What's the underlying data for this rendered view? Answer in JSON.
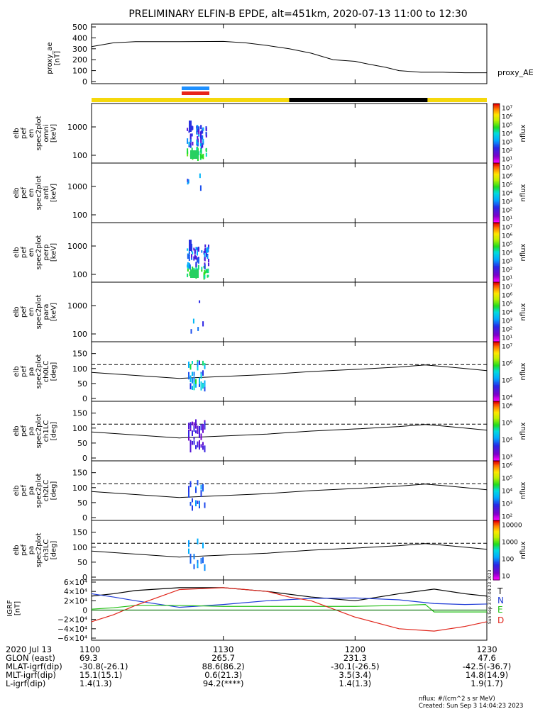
{
  "chart_data": {
    "title": "PRELIMINARY ELFIN-B EPDE, alt=451km, 2020-07-13 11:00 to 12:30",
    "type": "multi-panel spectrogram",
    "time_range": [
      "11:00",
      "12:30"
    ],
    "ae_panel": {
      "ylabel": [
        "proxy_ae",
        "[nT]"
      ],
      "ylim": [
        0,
        500
      ],
      "yticks": [
        "500",
        "400",
        "300",
        "200",
        "100",
        "0"
      ],
      "series_name": "proxy_AE",
      "x_minutes": [
        0,
        5,
        10,
        20,
        30,
        35,
        40,
        45,
        50,
        55,
        60,
        63,
        67,
        70,
        75,
        80,
        85,
        90
      ],
      "values": [
        320,
        355,
        365,
        365,
        368,
        355,
        330,
        300,
        260,
        200,
        185,
        160,
        130,
        100,
        85,
        85,
        80,
        80
      ]
    },
    "status_bar": [
      {
        "start": 0,
        "end": 50,
        "color": "#f5d80b"
      },
      {
        "start": 50,
        "end": 85,
        "color": "#000000"
      },
      {
        "start": 85,
        "end": 100,
        "color": "#f5d80b"
      }
    ],
    "markers": [
      {
        "color": "#1e90ff"
      },
      {
        "color": "#e8241a"
      }
    ],
    "energy_panels": [
      {
        "ylabel": [
          "elb",
          "pef",
          "en",
          "spec2plot",
          "omni",
          "[keV]"
        ],
        "yticks": [
          "1000",
          "100"
        ],
        "cbar_labels": [
          "10⁷",
          "10⁶",
          "10⁵",
          "10⁴",
          "10³",
          "10²",
          "10¹"
        ],
        "unit": "nflux"
      },
      {
        "ylabel": [
          "elb",
          "pef",
          "en",
          "spec2plot",
          "anti",
          "[keV]"
        ],
        "yticks": [
          "1000",
          "100"
        ],
        "cbar_labels": [
          "10⁷",
          "10⁶",
          "10⁵",
          "10⁴",
          "10³",
          "10²",
          "10¹"
        ],
        "unit": "nflux"
      },
      {
        "ylabel": [
          "elb",
          "pef",
          "en",
          "spec2plot",
          "perp",
          "[keV]"
        ],
        "yticks": [
          "1000",
          "100"
        ],
        "cbar_labels": [
          "10⁷",
          "10⁶",
          "10⁵",
          "10⁴",
          "10³",
          "10²",
          "10¹"
        ],
        "unit": "nflux"
      },
      {
        "ylabel": [
          "elb",
          "pef",
          "en",
          "spec2plot",
          "para",
          "[keV]"
        ],
        "yticks": [
          "1000",
          "100"
        ],
        "cbar_labels": [
          "10⁷",
          "10⁶",
          "10⁵",
          "10⁴",
          "10³",
          "10²",
          "10¹"
        ],
        "unit": "nflux"
      }
    ],
    "pa_panels": [
      {
        "ylabel": [
          "elb",
          "pef",
          "pa",
          "spec2plot",
          "ch0LC",
          "[deg]"
        ],
        "yticks": [
          "150",
          "100",
          "50",
          "0"
        ],
        "cbar_labels": [
          "10⁷",
          "10⁶",
          "10⁵",
          "10⁴"
        ],
        "unit": "nflux"
      },
      {
        "ylabel": [
          "elb",
          "pef",
          "pa",
          "spec2plot",
          "ch1LC",
          "[deg]"
        ],
        "yticks": [
          "150",
          "100",
          "50",
          "0"
        ],
        "cbar_labels": [
          "10⁶",
          "10⁵",
          "10⁴",
          "10³"
        ],
        "unit": "nflux"
      },
      {
        "ylabel": [
          "elb",
          "pef",
          "pa",
          "spec2plot",
          "ch2LC",
          "[deg]"
        ],
        "yticks": [
          "150",
          "100",
          "50",
          "0"
        ],
        "cbar_labels": [
          "10⁶",
          "10⁵",
          "10⁴",
          "10³",
          "10²"
        ],
        "unit": "nflux"
      },
      {
        "ylabel": [
          "elb",
          "pef",
          "pa",
          "spec2plot",
          "ch3LC",
          "[deg]"
        ],
        "yticks": [
          "150",
          "100",
          "50",
          "0"
        ],
        "cbar_labels": [
          "10000",
          "1000",
          "100",
          "10"
        ],
        "unit": "nflux"
      }
    ],
    "pa_curves": {
      "x_minutes": [
        0,
        10,
        20,
        40,
        50,
        60,
        70,
        76,
        80,
        85,
        90
      ],
      "solid_deg": [
        87,
        77,
        67,
        80,
        90,
        97,
        105,
        112,
        107,
        100,
        93
      ],
      "dashed_deg": 113
    },
    "igrf_panel": {
      "ylabel": [
        "IGRF",
        "[nT]"
      ],
      "yticks": [
        "6×10⁴",
        "4×10⁴",
        "2×10⁴",
        "0",
        "−2×10⁴",
        "−4×10⁴",
        "−6×10⁴"
      ],
      "ylim": [
        -60000,
        60000
      ],
      "series": [
        {
          "name": "T",
          "color": "#000000",
          "x": [
            0,
            5,
            10,
            20,
            30,
            40,
            50,
            60,
            70,
            78,
            85,
            90
          ],
          "y": [
            30000,
            35000,
            42000,
            48000,
            48000,
            40000,
            28000,
            20000,
            35000,
            45000,
            35000,
            30000
          ]
        },
        {
          "name": "N",
          "color": "#1f3bd6",
          "x": [
            0,
            5,
            10,
            20,
            30,
            40,
            50,
            60,
            70,
            78,
            85,
            90
          ],
          "y": [
            35000,
            28000,
            20000,
            6000,
            12000,
            20000,
            25000,
            26000,
            22000,
            14000,
            12000,
            13000
          ]
        },
        {
          "name": "E",
          "color": "#22c014",
          "x": [
            0,
            5,
            10,
            20,
            30,
            40,
            50,
            60,
            70,
            76,
            78,
            85,
            90
          ],
          "y": [
            2000,
            5000,
            10000,
            10000,
            8000,
            8000,
            8000,
            8000,
            10000,
            12000,
            -4000,
            -4000,
            -4000
          ]
        },
        {
          "name": "D",
          "color": "#e0241a",
          "x": [
            0,
            5,
            10,
            20,
            30,
            40,
            45,
            50,
            60,
            70,
            78,
            85,
            90
          ],
          "y": [
            -25000,
            -10000,
            10000,
            44000,
            48000,
            40000,
            28000,
            20000,
            -15000,
            -40000,
            -45000,
            -35000,
            -25000
          ]
        },
        {
          "name": "",
          "color": "#137a13",
          "x": [
            0,
            90
          ],
          "y": [
            0,
            0
          ]
        }
      ]
    },
    "ephemeris": {
      "rows": [
        {
          "label": "2020 Jul 13",
          "values": [
            "1100",
            "1130",
            "1200",
            "1230"
          ]
        },
        {
          "label": "GLON (east)",
          "values": [
            "69.3",
            "265.7",
            "231.3",
            "47.6"
          ]
        },
        {
          "label": "MLAT-igrf(dip)",
          "values": [
            "-30.8(-26.1)",
            "88.6(86.2)",
            "-30.1(-26.5)",
            "-42.5(-36.7)"
          ]
        },
        {
          "label": "MLT-igrf(dip)",
          "values": [
            "15.1(15.1)",
            "0.6(21.3)",
            "3.5(3.4)",
            "14.8(14.9)"
          ]
        },
        {
          "label": "L-igrf(dip)",
          "values": [
            "1.4(1.3)",
            "94.2(****)",
            "1.4(1.3)",
            "1.9(1.7)"
          ]
        }
      ],
      "x_minutes": [
        0,
        30,
        60,
        90
      ]
    },
    "footer": {
      "units": "nflux: #/(cm^2 s sr MeV)",
      "created": "Created: Sun Sep  3 14:04:23 2023",
      "side_stamp": "Sun Sep  3 07:04:23 2023"
    }
  }
}
